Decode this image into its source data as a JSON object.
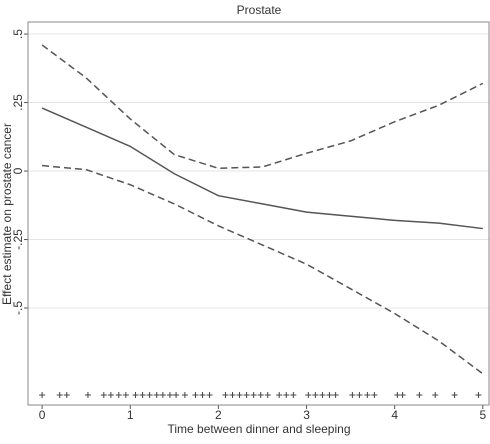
{
  "chart_data": {
    "type": "line",
    "title": "Prostate",
    "x_label": "Time between dinner and sleeping",
    "y_label": "Effect estimate on prostate cancer",
    "x": [
      0,
      0.5,
      1,
      1.5,
      2,
      2.5,
      3,
      3.5,
      4,
      4.5,
      5
    ],
    "series": [
      {
        "color": "#555555",
        "dashed": false,
        "values": [
          0.23,
          0.16,
          0.09,
          -0.01,
          -0.09,
          -0.12,
          -0.15,
          -0.165,
          -0.18,
          -0.19,
          -0.21
        ]
      },
      {
        "color": "#555555",
        "dashed": true,
        "values": [
          0.46,
          0.34,
          0.19,
          0.06,
          0.01,
          0.015,
          0.065,
          0.11,
          0.18,
          0.24,
          0.32
        ]
      },
      {
        "color": "#555555",
        "dashed": true,
        "values": [
          0.02,
          0.005,
          -0.05,
          -0.12,
          -0.2,
          -0.27,
          -0.34,
          -0.43,
          -0.52,
          -0.62,
          -0.74
        ]
      }
    ],
    "rug": [
      0,
      0.2,
      0.28,
      0.52,
      0.7,
      0.78,
      0.87,
      0.95,
      1.06,
      1.14,
      1.22,
      1.3,
      1.37,
      1.45,
      1.52,
      1.62,
      1.74,
      1.82,
      1.9,
      2.08,
      2.16,
      2.24,
      2.32,
      2.4,
      2.48,
      2.56,
      2.69,
      2.77,
      2.85,
      3.02,
      3.1,
      3.18,
      3.26,
      3.33,
      3.52,
      3.6,
      3.69,
      3.77,
      4.03,
      4.09,
      4.28,
      4.46,
      4.68,
      4.95
    ],
    "xlim": [
      -0.16,
      5.07
    ],
    "ylim": [
      -0.854,
      0.544
    ],
    "xticks": [
      0,
      1,
      2,
      3,
      4,
      5
    ],
    "yticks": [
      {
        "value": -0.5,
        "label": "-.5"
      },
      {
        "value": -0.25,
        "label": "-.25"
      },
      {
        "value": 0,
        "label": "0"
      },
      {
        "value": 0.25,
        "label": ".25"
      },
      {
        "value": 0.5,
        "label": ".5"
      }
    ],
    "grid": true
  }
}
